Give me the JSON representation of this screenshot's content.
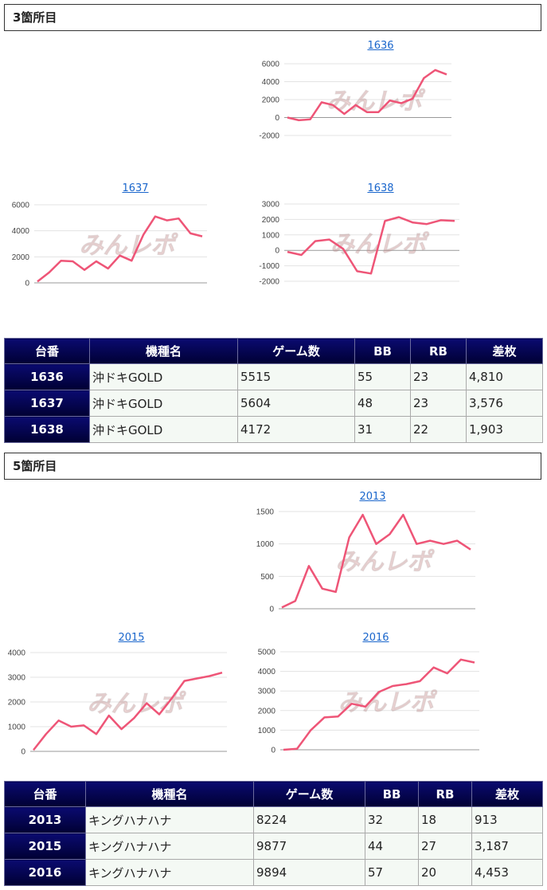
{
  "sections": [
    {
      "title": "3箇所目",
      "charts": [
        {
          "label": "1636",
          "yticks": [
            "6000",
            "4000",
            "2000",
            "0",
            "-2000"
          ],
          "ymin": -2000,
          "ymax": 6000,
          "values": [
            0,
            -300,
            -200,
            1700,
            1400,
            400,
            1400,
            600,
            600,
            1900,
            1600,
            2100,
            4400,
            5300,
            4810
          ]
        },
        {
          "label": "1637",
          "yticks": [
            "6000",
            "4000",
            "2000",
            "0"
          ],
          "ymin": 0,
          "ymax": 6000,
          "values": [
            100,
            800,
            1700,
            1650,
            1000,
            1650,
            1100,
            2100,
            1700,
            3700,
            5100,
            4800,
            4950,
            3800,
            3576
          ]
        },
        {
          "label": "1638",
          "yticks": [
            "3000",
            "2000",
            "1000",
            "0",
            "-1000",
            "-2000"
          ],
          "ymin": -2000,
          "ymax": 3000,
          "values": [
            -100,
            -300,
            600,
            700,
            100,
            -1350,
            -1500,
            1900,
            2150,
            1800,
            1700,
            1950,
            1903
          ]
        }
      ],
      "table": {
        "headers": [
          "台番",
          "機種名",
          "ゲーム数",
          "BB",
          "RB",
          "差枚"
        ],
        "rows": [
          [
            "1636",
            "沖ドキGOLD",
            "5515",
            "55",
            "23",
            "4,810"
          ],
          [
            "1637",
            "沖ドキGOLD",
            "5604",
            "48",
            "23",
            "3,576"
          ],
          [
            "1638",
            "沖ドキGOLD",
            "4172",
            "31",
            "22",
            "1,903"
          ]
        ]
      }
    },
    {
      "title": "5箇所目",
      "charts": [
        {
          "label": "2013",
          "yticks": [
            "1500",
            "1000",
            "500",
            "0"
          ],
          "ymin": 0,
          "ymax": 1500,
          "values": [
            20,
            120,
            660,
            310,
            260,
            1100,
            1450,
            1000,
            1150,
            1450,
            1000,
            1050,
            1000,
            1050,
            913
          ]
        },
        {
          "label": "2015",
          "yticks": [
            "4000",
            "3000",
            "2000",
            "1000",
            "0"
          ],
          "ymin": 0,
          "ymax": 4000,
          "values": [
            50,
            700,
            1250,
            1000,
            1050,
            700,
            1450,
            900,
            1350,
            1950,
            1500,
            2150,
            2850,
            2950,
            3050,
            3187
          ]
        },
        {
          "label": "2016",
          "yticks": [
            "5000",
            "4000",
            "3000",
            "2000",
            "1000",
            "0"
          ],
          "ymin": 0,
          "ymax": 5000,
          "values": [
            0,
            50,
            1000,
            1650,
            1700,
            2350,
            2200,
            2950,
            3250,
            3350,
            3500,
            4200,
            3900,
            4600,
            4453
          ]
        }
      ],
      "table": {
        "headers": [
          "台番",
          "機種名",
          "ゲーム数",
          "BB",
          "RB",
          "差枚"
        ],
        "rows": [
          [
            "2013",
            "キングハナハナ",
            "8224",
            "32",
            "18",
            "913"
          ],
          [
            "2015",
            "キングハナハナ",
            "9877",
            "44",
            "27",
            "3,187"
          ],
          [
            "2016",
            "キングハナハナ",
            "9894",
            "57",
            "20",
            "4,453"
          ]
        ]
      }
    }
  ]
}
